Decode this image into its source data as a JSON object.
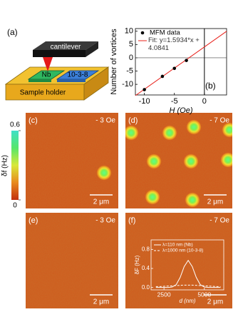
{
  "panel_a": {
    "label": "(a)",
    "cantilever": "cantilever",
    "sample_1": "Nb",
    "sample_2": "10-3-8",
    "holder": "Sample holder"
  },
  "colorbar": {
    "clim": [
      0,
      0.6
    ],
    "ticks": [
      {
        "value": 0.6,
        "label": "0.6"
      },
      0
    ],
    "label": "δf (Hz)"
  },
  "images": [
    {
      "label": "(c)",
      "field": "- 3 Oe",
      "scale_bar": "2 μm"
    },
    {
      "label": "(d)",
      "field": "- 7 Oe",
      "scale_bar": "2 μm"
    },
    {
      "label": "(e)",
      "field": "- 3 Oe",
      "scale_bar": "2 μm"
    },
    {
      "label": "(f)",
      "field": "- 7 Oe",
      "scale_bar": "2 μm"
    }
  ],
  "chart_data": [
    {
      "type": "scatter",
      "panel_label": "(b)",
      "x_label": "H (Oe)",
      "y_label": "Number of vortices",
      "xlim": [
        -11.5,
        3.7
      ],
      "ylim": [
        -14,
        11
      ],
      "xticks": [
        -10,
        -5,
        0
      ],
      "yticks": [
        -10,
        -5,
        0,
        5,
        10
      ],
      "series": [
        {
          "name": "MFM data",
          "color": "#000000",
          "x": [
            -10,
            -7,
            -5,
            -3
          ],
          "values": [
            -12,
            -7,
            -4,
            -1
          ]
        }
      ],
      "fit": {
        "name": "Fit: y=1.5934*x + 4.0841",
        "color": "#e8201a",
        "x": [
          -11.5,
          3.7
        ],
        "values": [
          -14.24,
          9.98
        ]
      }
    },
    {
      "type": "line",
      "x_label": "d (nm)",
      "y_label": "δF (Hz)",
      "xlim": [
        1700,
        6200
      ],
      "ylim": [
        -0.05,
        1.0
      ],
      "xticks": [
        2500,
        5000
      ],
      "yticks": [
        {
          "value": 0,
          "label": "0.0"
        },
        {
          "value": 0.4,
          "label": "0.4"
        },
        {
          "value": 0.8,
          "label": "0.8"
        }
      ],
      "x": [
        2000,
        2250,
        2500,
        2750,
        3000,
        3250,
        3500,
        3750,
        4000,
        4250,
        4500,
        4750,
        5000,
        5250,
        5500,
        5750,
        6000
      ],
      "series": [
        {
          "name": "λ=110 nm (Nb)",
          "color": "#ffffff",
          "dash": false,
          "values": [
            0,
            0,
            0,
            0,
            0.01,
            0.057,
            0.21,
            0.44,
            0.57,
            0.44,
            0.21,
            0.057,
            0.01,
            0,
            0,
            0,
            0
          ]
        },
        {
          "name": "λ=1000 nm (10-3-8)",
          "color": "#ffffff",
          "dash": true,
          "values": [
            0.02,
            0.02,
            0.025,
            0.03,
            0.035,
            0.04,
            0.045,
            0.05,
            0.05,
            0.05,
            0.045,
            0.04,
            0.035,
            0.03,
            0.025,
            0.02,
            0.02
          ]
        }
      ]
    }
  ]
}
